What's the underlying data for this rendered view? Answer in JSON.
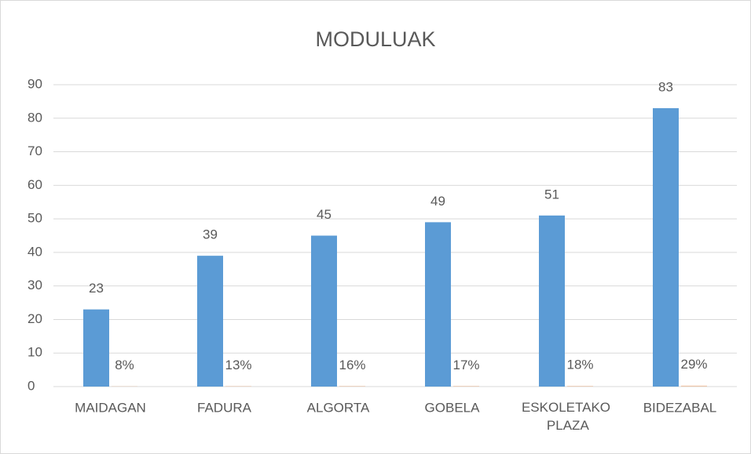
{
  "chart_data": {
    "type": "bar",
    "title": "MODULUAK",
    "categories": [
      "MAIDAGAN",
      "FADURA",
      "ALGORTA",
      "GOBELA",
      "ESKOLETAKO PLAZA",
      "BIDEZABAL"
    ],
    "series": [
      {
        "color": "#5b9bd5",
        "values": [
          23,
          39,
          45,
          49,
          51,
          83
        ]
      },
      {
        "color": "#ed7d31",
        "values": [
          0.08,
          0.13,
          0.16,
          0.17,
          0.18,
          0.29
        ],
        "value_labels": [
          "8%",
          "13%",
          "16%",
          "17%",
          "18%",
          "29%"
        ]
      }
    ],
    "ylim": [
      0,
      90
    ],
    "yticks": [
      0,
      10,
      20,
      30,
      40,
      50,
      60,
      70,
      80,
      90
    ],
    "grid": true
  }
}
